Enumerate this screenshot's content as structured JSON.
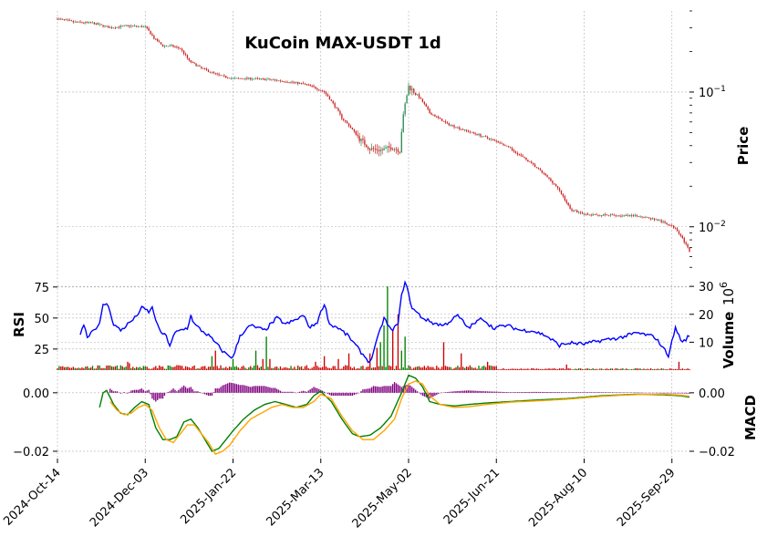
{
  "chart_data": {
    "type": "candlestick",
    "title": "KuCoin MAX-USDT 1d",
    "colors": {
      "up": "#2e8b57",
      "down": "#cc2222",
      "rsi": "#0000ff",
      "vol_up": "#008000",
      "vol_down": "#cc0000",
      "macd": "#008000",
      "signal": "#ffa500",
      "hist": "#800080",
      "grid": "#b0b0b0"
    },
    "x_ticks": [
      "2024-Oct-14",
      "2024-Dec-03",
      "2025-Jan-22",
      "2025-Mar-13",
      "2025-May-02",
      "2025-Jun-21",
      "2025-Aug-10",
      "2025-Sep-29"
    ],
    "price_panel": {
      "ylabel": "Price",
      "scale": "log",
      "ylim": [
        0.0045,
        0.4
      ],
      "tick_labels": [
        {
          "value": 0.1,
          "base": "10",
          "exp": "−1"
        },
        {
          "value": 0.01,
          "base": "10",
          "exp": "−2"
        }
      ],
      "anchors": [
        [
          0,
          0.35
        ],
        [
          10,
          0.33
        ],
        [
          20,
          0.325
        ],
        [
          30,
          0.3
        ],
        [
          40,
          0.31
        ],
        [
          50,
          0.305
        ],
        [
          55,
          0.25
        ],
        [
          60,
          0.22
        ],
        [
          65,
          0.22
        ],
        [
          70,
          0.21
        ],
        [
          75,
          0.17
        ],
        [
          82,
          0.15
        ],
        [
          92,
          0.133
        ],
        [
          100,
          0.126
        ],
        [
          110,
          0.126
        ],
        [
          120,
          0.124
        ],
        [
          130,
          0.12
        ],
        [
          140,
          0.115
        ],
        [
          145,
          0.11
        ],
        [
          152,
          0.1
        ],
        [
          162,
          0.064
        ],
        [
          172,
          0.045
        ],
        [
          178,
          0.038
        ],
        [
          185,
          0.037
        ],
        [
          190,
          0.039
        ],
        [
          195,
          0.037
        ],
        [
          200,
          0.11
        ],
        [
          205,
          0.095
        ],
        [
          212,
          0.07
        ],
        [
          222,
          0.058
        ],
        [
          232,
          0.052
        ],
        [
          240,
          0.048
        ],
        [
          252,
          0.042
        ],
        [
          262,
          0.035
        ],
        [
          272,
          0.028
        ],
        [
          284,
          0.02
        ],
        [
          292,
          0.0135
        ],
        [
          302,
          0.0122
        ],
        [
          312,
          0.0122
        ],
        [
          322,
          0.0121
        ],
        [
          332,
          0.012
        ],
        [
          342,
          0.0112
        ],
        [
          352,
          0.0098
        ],
        [
          356,
          0.0082
        ],
        [
          360,
          0.0065
        ]
      ]
    },
    "rsi_panel": {
      "ylabel": "RSI",
      "ylim": [
        8,
        80
      ],
      "ticks": [
        25,
        50,
        75
      ],
      "anchors": [
        [
          13,
          38
        ],
        [
          15,
          45
        ],
        [
          17,
          35
        ],
        [
          20,
          40
        ],
        [
          24,
          45
        ],
        [
          26,
          60
        ],
        [
          28,
          62
        ],
        [
          30,
          55
        ],
        [
          32,
          45
        ],
        [
          36,
          40
        ],
        [
          40,
          45
        ],
        [
          44,
          50
        ],
        [
          48,
          58
        ],
        [
          50,
          57
        ],
        [
          52,
          55
        ],
        [
          54,
          58
        ],
        [
          58,
          40
        ],
        [
          62,
          35
        ],
        [
          64,
          28
        ],
        [
          67,
          38
        ],
        [
          70,
          40
        ],
        [
          74,
          42
        ],
        [
          76,
          52
        ],
        [
          78,
          45
        ],
        [
          82,
          40
        ],
        [
          86,
          36
        ],
        [
          90,
          30
        ],
        [
          95,
          22
        ],
        [
          100,
          18
        ],
        [
          104,
          36
        ],
        [
          110,
          44
        ],
        [
          118,
          40
        ],
        [
          125,
          50
        ],
        [
          130,
          45
        ],
        [
          135,
          48
        ],
        [
          140,
          52
        ],
        [
          144,
          42
        ],
        [
          148,
          47
        ],
        [
          152,
          62
        ],
        [
          155,
          45
        ],
        [
          160,
          42
        ],
        [
          166,
          35
        ],
        [
          172,
          24
        ],
        [
          178,
          14
        ],
        [
          182,
          32
        ],
        [
          186,
          50
        ],
        [
          190,
          40
        ],
        [
          194,
          45
        ],
        [
          196,
          68
        ],
        [
          198,
          80
        ],
        [
          202,
          58
        ],
        [
          208,
          50
        ],
        [
          214,
          46
        ],
        [
          220,
          44
        ],
        [
          228,
          52
        ],
        [
          234,
          42
        ],
        [
          242,
          50
        ],
        [
          248,
          42
        ],
        [
          256,
          44
        ],
        [
          264,
          40
        ],
        [
          270,
          40
        ],
        [
          278,
          36
        ],
        [
          286,
          28
        ],
        [
          292,
          30
        ],
        [
          300,
          29
        ],
        [
          310,
          32
        ],
        [
          320,
          34
        ],
        [
          330,
          38
        ],
        [
          340,
          35
        ],
        [
          344,
          28
        ],
        [
          348,
          20
        ],
        [
          352,
          42
        ],
        [
          356,
          30
        ],
        [
          360,
          36
        ]
      ]
    },
    "volume_panel": {
      "ylabel": "Volume",
      "unit_base": "10",
      "unit_exp": "6",
      "ylim": [
        0,
        32
      ],
      "ticks": [
        10,
        20,
        30
      ]
    },
    "macd_panel": {
      "ylabel": "MACD",
      "ylim": [
        -0.0225,
        0.0065
      ],
      "left_ticks": [
        {
          "value": 0.0,
          "label": "0.00"
        },
        {
          "value": -0.02,
          "label": "−0.02"
        }
      ],
      "right_ticks": [
        {
          "value": 0.0,
          "label": "0.00"
        },
        {
          "value": -0.02,
          "label": "−0.02"
        }
      ],
      "macd_anchors": [
        [
          24,
          -0.005
        ],
        [
          26,
          0.0
        ],
        [
          28,
          0.0008
        ],
        [
          32,
          -0.004
        ],
        [
          36,
          -0.007
        ],
        [
          40,
          -0.0075
        ],
        [
          44,
          -0.005
        ],
        [
          48,
          -0.003
        ],
        [
          52,
          -0.004
        ],
        [
          56,
          -0.012
        ],
        [
          60,
          -0.016
        ],
        [
          64,
          -0.016
        ],
        [
          68,
          -0.015
        ],
        [
          72,
          -0.01
        ],
        [
          76,
          -0.009
        ],
        [
          80,
          -0.012
        ],
        [
          84,
          -0.016
        ],
        [
          88,
          -0.02
        ],
        [
          92,
          -0.019
        ],
        [
          96,
          -0.016
        ],
        [
          100,
          -0.013
        ],
        [
          106,
          -0.009
        ],
        [
          112,
          -0.006
        ],
        [
          118,
          -0.004
        ],
        [
          124,
          -0.003
        ],
        [
          130,
          -0.004
        ],
        [
          136,
          -0.005
        ],
        [
          142,
          -0.004
        ],
        [
          146,
          -0.001
        ],
        [
          150,
          0.0005
        ],
        [
          156,
          -0.003
        ],
        [
          162,
          -0.009
        ],
        [
          168,
          -0.014
        ],
        [
          172,
          -0.015
        ],
        [
          178,
          -0.0145
        ],
        [
          184,
          -0.012
        ],
        [
          190,
          -0.008
        ],
        [
          196,
          0.0
        ],
        [
          200,
          0.006
        ],
        [
          204,
          0.005
        ],
        [
          208,
          0.002
        ],
        [
          212,
          -0.003
        ],
        [
          218,
          -0.004
        ],
        [
          226,
          -0.0045
        ],
        [
          234,
          -0.004
        ],
        [
          244,
          -0.0035
        ],
        [
          258,
          -0.003
        ],
        [
          272,
          -0.0025
        ],
        [
          290,
          -0.002
        ],
        [
          310,
          -0.001
        ],
        [
          330,
          -0.0005
        ],
        [
          345,
          -0.0007
        ],
        [
          355,
          -0.001
        ],
        [
          360,
          -0.0015
        ]
      ],
      "signal_anchors": [
        [
          30,
          -0.003
        ],
        [
          34,
          -0.006
        ],
        [
          38,
          -0.0075
        ],
        [
          42,
          -0.007
        ],
        [
          46,
          -0.005
        ],
        [
          50,
          -0.004
        ],
        [
          54,
          -0.006
        ],
        [
          58,
          -0.012
        ],
        [
          62,
          -0.016
        ],
        [
          66,
          -0.017
        ],
        [
          70,
          -0.014
        ],
        [
          74,
          -0.011
        ],
        [
          78,
          -0.011
        ],
        [
          82,
          -0.014
        ],
        [
          86,
          -0.017
        ],
        [
          90,
          -0.021
        ],
        [
          94,
          -0.02
        ],
        [
          98,
          -0.018
        ],
        [
          104,
          -0.013
        ],
        [
          110,
          -0.009
        ],
        [
          116,
          -0.007
        ],
        [
          122,
          -0.005
        ],
        [
          128,
          -0.004
        ],
        [
          134,
          -0.005
        ],
        [
          140,
          -0.005
        ],
        [
          146,
          -0.003
        ],
        [
          150,
          -0.0005
        ],
        [
          156,
          -0.002
        ],
        [
          162,
          -0.008
        ],
        [
          168,
          -0.013
        ],
        [
          174,
          -0.016
        ],
        [
          180,
          -0.016
        ],
        [
          186,
          -0.013
        ],
        [
          192,
          -0.009
        ],
        [
          196,
          -0.002
        ],
        [
          200,
          0.003
        ],
        [
          204,
          0.004
        ],
        [
          208,
          0.003
        ],
        [
          212,
          -0.001
        ],
        [
          218,
          -0.004
        ],
        [
          226,
          -0.005
        ],
        [
          234,
          -0.0048
        ],
        [
          244,
          -0.004
        ],
        [
          258,
          -0.0032
        ],
        [
          272,
          -0.0028
        ],
        [
          290,
          -0.0022
        ],
        [
          310,
          -0.0012
        ],
        [
          330,
          -0.0006
        ],
        [
          345,
          -0.0005
        ],
        [
          355,
          -0.0008
        ],
        [
          360,
          -0.0012
        ]
      ]
    },
    "n_days": 361,
    "grid": true
  }
}
